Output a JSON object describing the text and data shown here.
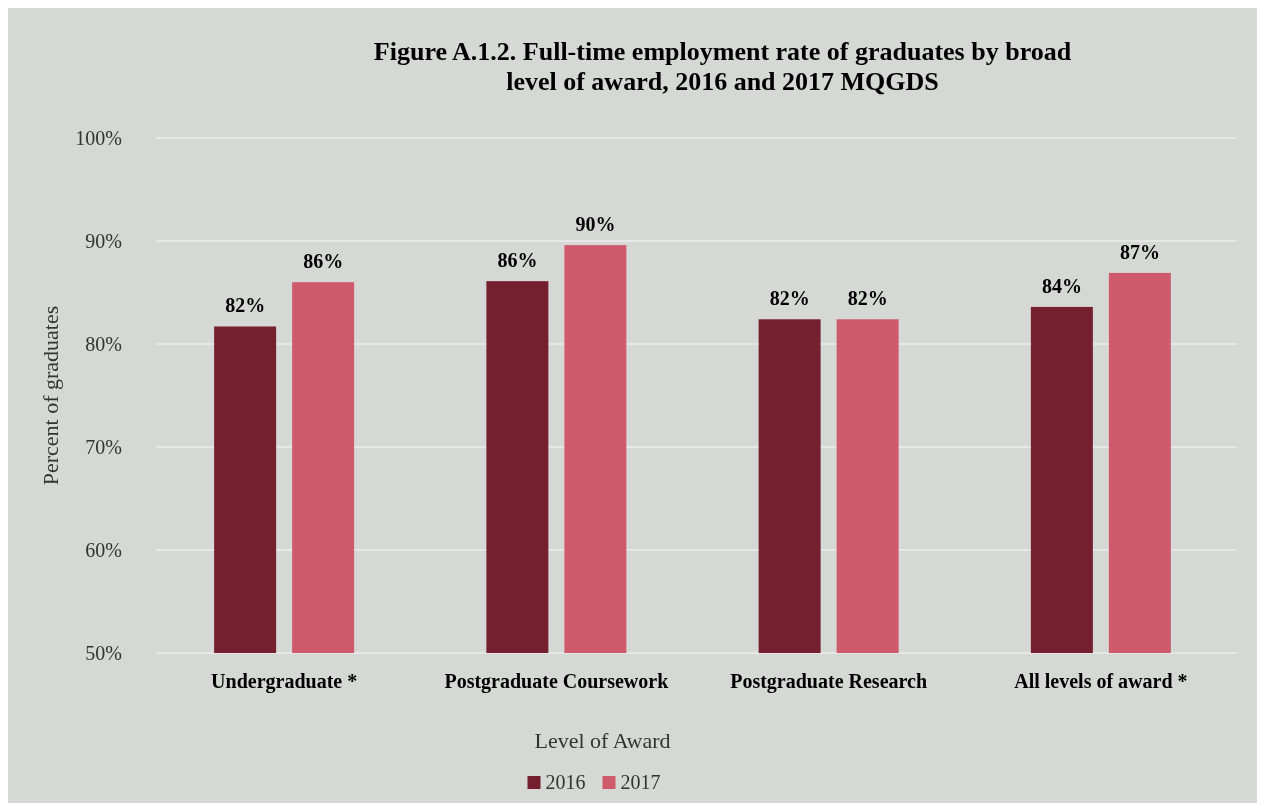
{
  "chart_data": {
    "type": "bar",
    "title": "Figure A.1.2. Full-time employment rate of  graduates by broad level of award, 2016 and 2017 MQGDS",
    "xlabel": "Level of Award",
    "ylabel": "Percent of graduates",
    "categories": [
      "Undergraduate *",
      "Postgraduate Coursework",
      "Postgraduate Research",
      "All levels of award *"
    ],
    "series": [
      {
        "name": "2016",
        "color": "#74202f",
        "values": [
          81.7,
          86.1,
          82.4,
          83.6
        ],
        "value_labels": [
          "82%",
          "86%",
          "82%",
          "84%"
        ]
      },
      {
        "name": "2017",
        "color": "#cf5a6b",
        "values": [
          86.0,
          89.6,
          82.4,
          86.9
        ],
        "value_labels": [
          "86%",
          "90%",
          "82%",
          "87%"
        ]
      }
    ],
    "ylim": [
      50,
      100
    ],
    "yticks": [
      {
        "value": 50,
        "label": "50%"
      },
      {
        "value": 60,
        "label": "60%"
      },
      {
        "value": 70,
        "label": "70%"
      },
      {
        "value": 80,
        "label": "80%"
      },
      {
        "value": 90,
        "label": "90%"
      },
      {
        "value": 100,
        "label": "100%"
      }
    ],
    "grid": "y",
    "legend": "bottom"
  }
}
